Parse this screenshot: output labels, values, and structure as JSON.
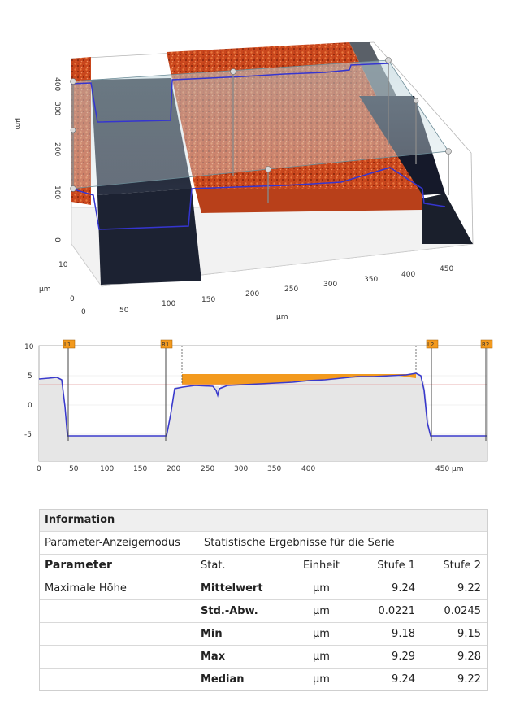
{
  "surface3d": {
    "z_unit": "µm",
    "z_ticks": [
      "0",
      "100",
      "200",
      "300",
      "400"
    ],
    "y_unit": "µm",
    "y_ticks": [
      "0",
      "10"
    ],
    "x_unit": "µm",
    "x_ticks": [
      "0",
      "50",
      "100",
      "150",
      "200",
      "250",
      "300",
      "350",
      "400",
      "450"
    ]
  },
  "profile": {
    "y_ticks": [
      "10",
      "5",
      "0",
      "-5"
    ],
    "x_ticks": [
      "0",
      "50",
      "100",
      "150",
      "200",
      "250",
      "300",
      "350",
      "400",
      "450 µm"
    ],
    "markers": [
      "L1",
      "R1",
      "L2",
      "R2"
    ],
    "colors": {
      "profile_line": "#3a3acc",
      "fill": "#e8e8e8",
      "highlight": "#f39a1e",
      "ref_line": "#e39a9a"
    }
  },
  "info": {
    "title": "Information",
    "mode_label": "Parameter-Anzeigemodus",
    "mode_value": "Statistische Ergebnisse für die Serie",
    "headers": {
      "parameter": "Parameter",
      "stat": "Stat.",
      "unit": "Einheit",
      "step1": "Stufe 1",
      "step2": "Stufe 2"
    },
    "param_name": "Maximale Höhe",
    "rows": [
      {
        "stat": "Mittelwert",
        "unit": "µm",
        "s1": "9.24",
        "s2": "9.22"
      },
      {
        "stat": "Std.-Abw.",
        "unit": "µm",
        "s1": "0.0221",
        "s2": "0.0245"
      },
      {
        "stat": "Min",
        "unit": "µm",
        "s1": "9.18",
        "s2": "9.15"
      },
      {
        "stat": "Max",
        "unit": "µm",
        "s1": "9.29",
        "s2": "9.28"
      },
      {
        "stat": "Median",
        "unit": "µm",
        "s1": "9.24",
        "s2": "9.22"
      }
    ]
  }
}
